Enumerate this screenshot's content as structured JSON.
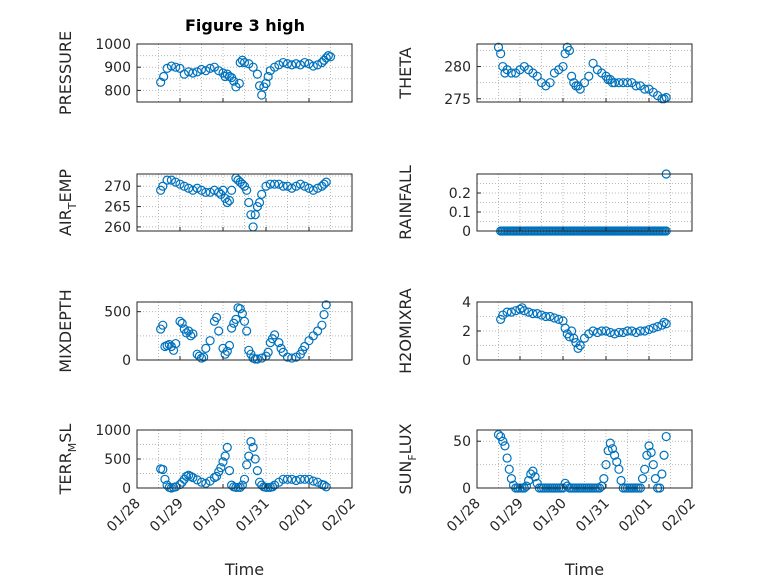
{
  "chart_data": [
    {
      "type": "scatter",
      "title": "Figure 3 high",
      "ylabel": "PRESSURE",
      "xlim": [
        "01/28",
        "02/02"
      ],
      "ylim": [
        750,
        1000
      ],
      "yticks": [
        800,
        900,
        1000
      ],
      "show_xticks": false,
      "color": "#0072bd",
      "x": [
        0.55,
        0.62,
        0.7,
        0.8,
        0.9,
        1.0,
        1.1,
        1.2,
        1.3,
        1.4,
        1.5,
        1.6,
        1.7,
        1.8,
        1.9,
        2.0,
        2.05,
        2.1,
        2.15,
        2.2,
        2.25,
        2.3,
        2.38,
        2.4,
        2.45,
        2.5,
        2.6,
        2.7,
        2.8,
        2.85,
        2.9,
        2.95,
        3.0,
        3.05,
        3.1,
        3.2,
        3.3,
        3.4,
        3.5,
        3.6,
        3.7,
        3.8,
        3.9,
        4.0,
        4.1,
        4.2,
        4.3,
        4.35,
        4.4,
        4.45,
        4.5
      ],
      "values": [
        835,
        860,
        895,
        905,
        900,
        895,
        870,
        880,
        875,
        880,
        890,
        885,
        895,
        900,
        885,
        875,
        860,
        870,
        860,
        855,
        840,
        815,
        830,
        920,
        930,
        920,
        915,
        900,
        870,
        820,
        780,
        815,
        830,
        860,
        885,
        900,
        910,
        920,
        915,
        910,
        915,
        910,
        920,
        915,
        905,
        910,
        920,
        930,
        940,
        950,
        945
      ]
    },
    {
      "type": "scatter",
      "title": "",
      "ylabel": "THETA",
      "xlim": [
        "01/28",
        "02/02"
      ],
      "ylim": [
        274.5,
        283.5
      ],
      "yticks": [
        275,
        280
      ],
      "show_xticks": false,
      "color": "#0072bd",
      "x": [
        0.5,
        0.55,
        0.6,
        0.65,
        0.7,
        0.8,
        0.9,
        1.0,
        1.1,
        1.2,
        1.3,
        1.4,
        1.5,
        1.6,
        1.7,
        1.8,
        1.9,
        2.0,
        2.05,
        2.1,
        2.15,
        2.2,
        2.25,
        2.3,
        2.35,
        2.4,
        2.5,
        2.6,
        2.7,
        2.8,
        2.9,
        3.0,
        3.05,
        3.1,
        3.15,
        3.2,
        3.3,
        3.4,
        3.5,
        3.6,
        3.7,
        3.8,
        3.9,
        4.0,
        4.1,
        4.2,
        4.3,
        4.35,
        4.4
      ],
      "values": [
        283,
        282,
        280,
        279,
        279.5,
        279,
        279,
        279.5,
        280,
        279.5,
        279,
        278.5,
        277.5,
        277,
        277.5,
        279,
        279.5,
        280,
        282,
        283,
        282.5,
        278.5,
        277.5,
        277,
        277,
        276.5,
        277.5,
        278.5,
        280.5,
        279.5,
        279,
        278.5,
        278,
        278,
        277.5,
        277.5,
        277.5,
        277.5,
        277.5,
        277.5,
        277,
        277,
        276.5,
        276.5,
        276,
        275.5,
        275,
        275,
        275.2
      ]
    },
    {
      "type": "scatter",
      "title": "",
      "ylabel": "AIR_TEMP",
      "ylabel_main": "AIR",
      "ylabel_sub": "T",
      "ylabel_rest": "EMP",
      "xlim": [
        "01/28",
        "02/02"
      ],
      "ylim": [
        259,
        273
      ],
      "yticks": [
        260,
        265,
        270
      ],
      "show_xticks": false,
      "color": "#0072bd",
      "x": [
        0.55,
        0.6,
        0.7,
        0.8,
        0.9,
        1.0,
        1.1,
        1.2,
        1.3,
        1.4,
        1.5,
        1.6,
        1.7,
        1.8,
        1.9,
        1.95,
        2.0,
        2.05,
        2.1,
        2.15,
        2.2,
        2.3,
        2.35,
        2.4,
        2.45,
        2.5,
        2.55,
        2.6,
        2.65,
        2.7,
        2.75,
        2.8,
        2.85,
        2.9,
        3.0,
        3.1,
        3.2,
        3.3,
        3.4,
        3.5,
        3.6,
        3.7,
        3.8,
        3.9,
        4.0,
        4.1,
        4.2,
        4.3,
        4.35,
        4.4
      ],
      "values": [
        269,
        270,
        271.5,
        271.5,
        271,
        270.5,
        270,
        269.5,
        269,
        269.5,
        269,
        268.5,
        268.5,
        269,
        268.5,
        268,
        269,
        267,
        266,
        266.5,
        269,
        272,
        271.5,
        271,
        270.5,
        270,
        269,
        266,
        263,
        260,
        263,
        265,
        266,
        268,
        270,
        270.5,
        270.5,
        270.5,
        270,
        270,
        269.5,
        270,
        270.5,
        270,
        269.5,
        269,
        269.5,
        270,
        270.5,
        271
      ]
    },
    {
      "type": "scatter",
      "title": "",
      "ylabel": "RAINFALL",
      "xlim": [
        "01/28",
        "02/02"
      ],
      "ylim": [
        0,
        0.3
      ],
      "yticks": [
        0,
        0.1,
        0.2
      ],
      "ytick_labels": [
        "0",
        "0.1",
        "0.2"
      ],
      "show_xticks": false,
      "color": "#0072bd",
      "x_zero_start": 0.55,
      "x_zero_end": 4.4,
      "x_zero_step": 0.035,
      "x": [
        4.4
      ],
      "values": [
        0.3
      ]
    },
    {
      "type": "scatter",
      "title": "",
      "ylabel": "MIXDEPTH",
      "xlim": [
        "01/28",
        "02/02"
      ],
      "ylim": [
        0,
        600
      ],
      "yticks": [
        0,
        500
      ],
      "show_xticks": false,
      "color": "#0072bd",
      "x": [
        0.55,
        0.6,
        0.65,
        0.7,
        0.75,
        0.8,
        0.85,
        0.9,
        1.0,
        1.05,
        1.1,
        1.15,
        1.2,
        1.25,
        1.3,
        1.4,
        1.45,
        1.5,
        1.55,
        1.6,
        1.7,
        1.8,
        1.85,
        1.9,
        2.0,
        2.05,
        2.1,
        2.15,
        2.2,
        2.25,
        2.3,
        2.35,
        2.4,
        2.45,
        2.5,
        2.55,
        2.6,
        2.65,
        2.7,
        2.75,
        2.8,
        2.9,
        3.0,
        3.05,
        3.1,
        3.15,
        3.2,
        3.3,
        3.35,
        3.4,
        3.5,
        3.6,
        3.7,
        3.8,
        3.85,
        3.9,
        4.0,
        4.1,
        4.2,
        4.3,
        4.35,
        4.4
      ],
      "values": [
        320,
        360,
        140,
        150,
        160,
        140,
        100,
        170,
        400,
        380,
        320,
        280,
        300,
        250,
        270,
        60,
        40,
        20,
        30,
        120,
        200,
        400,
        440,
        300,
        120,
        60,
        90,
        150,
        330,
        380,
        420,
        540,
        530,
        480,
        400,
        300,
        100,
        60,
        20,
        10,
        10,
        20,
        40,
        80,
        180,
        220,
        260,
        180,
        120,
        80,
        30,
        20,
        30,
        60,
        100,
        140,
        200,
        250,
        300,
        360,
        470,
        570
      ]
    },
    {
      "type": "scatter",
      "title": "",
      "ylabel": "H2OMIXRA",
      "xlim": [
        "01/28",
        "02/02"
      ],
      "ylim": [
        0,
        4
      ],
      "yticks": [
        0,
        2,
        4
      ],
      "show_xticks": false,
      "color": "#0072bd",
      "x": [
        0.55,
        0.6,
        0.7,
        0.8,
        0.9,
        1.0,
        1.05,
        1.1,
        1.2,
        1.3,
        1.4,
        1.5,
        1.6,
        1.7,
        1.8,
        1.9,
        2.0,
        2.05,
        2.1,
        2.15,
        2.2,
        2.25,
        2.3,
        2.35,
        2.4,
        2.5,
        2.6,
        2.7,
        2.8,
        2.9,
        3.0,
        3.1,
        3.2,
        3.3,
        3.4,
        3.5,
        3.6,
        3.7,
        3.8,
        3.9,
        4.0,
        4.1,
        4.2,
        4.3,
        4.35,
        4.4
      ],
      "values": [
        2.8,
        3.1,
        3.3,
        3.3,
        3.4,
        3.5,
        3.6,
        3.4,
        3.3,
        3.2,
        3.2,
        3.1,
        3.0,
        3.0,
        2.9,
        2.8,
        2.7,
        2.2,
        1.8,
        1.6,
        2.0,
        1.5,
        1.2,
        0.8,
        1.0,
        1.5,
        1.8,
        2.0,
        1.9,
        2.0,
        2.0,
        1.9,
        1.8,
        1.9,
        1.9,
        2.0,
        2.0,
        1.9,
        2.0,
        2.0,
        2.1,
        2.2,
        2.3,
        2.4,
        2.6,
        2.5
      ]
    },
    {
      "type": "scatter",
      "title": "",
      "ylabel": "TERR_MSL",
      "ylabel_main": "TERR",
      "ylabel_sub": "M",
      "ylabel_rest": "SL",
      "xlabel": "Time",
      "xlim": [
        "01/28",
        "02/02"
      ],
      "ylim": [
        0,
        1000
      ],
      "yticks": [
        0,
        500,
        1000
      ],
      "show_xticks": true,
      "xtick_labels": [
        "01/28",
        "01/29",
        "01/30",
        "01/31",
        "02/01",
        "02/02"
      ],
      "color": "#0072bd",
      "x": [
        0.55,
        0.6,
        0.65,
        0.7,
        0.75,
        0.8,
        0.85,
        0.9,
        1.0,
        1.05,
        1.1,
        1.15,
        1.2,
        1.25,
        1.3,
        1.4,
        1.5,
        1.6,
        1.7,
        1.8,
        1.85,
        1.9,
        1.95,
        2.0,
        2.05,
        2.1,
        2.15,
        2.2,
        2.25,
        2.3,
        2.35,
        2.4,
        2.45,
        2.5,
        2.55,
        2.6,
        2.65,
        2.7,
        2.75,
        2.8,
        2.85,
        2.9,
        2.95,
        3.0,
        3.05,
        3.1,
        3.15,
        3.2,
        3.3,
        3.4,
        3.5,
        3.6,
        3.7,
        3.8,
        3.9,
        4.0,
        4.1,
        4.2,
        4.3,
        4.35,
        4.4
      ],
      "values": [
        330,
        320,
        150,
        50,
        10,
        0,
        10,
        20,
        60,
        100,
        150,
        200,
        220,
        200,
        180,
        140,
        100,
        80,
        120,
        180,
        200,
        280,
        350,
        450,
        550,
        700,
        300,
        50,
        20,
        10,
        10,
        10,
        50,
        150,
        400,
        550,
        800,
        700,
        500,
        300,
        100,
        50,
        20,
        10,
        10,
        10,
        20,
        50,
        100,
        150,
        150,
        150,
        130,
        150,
        150,
        150,
        120,
        100,
        60,
        50,
        20
      ]
    },
    {
      "type": "scatter",
      "title": "",
      "ylabel": "SUN_FLUX",
      "ylabel_main": "SUN",
      "ylabel_sub": "F",
      "ylabel_rest": "LUX",
      "xlabel": "Time",
      "xlim": [
        "01/28",
        "02/02"
      ],
      "ylim": [
        0,
        62
      ],
      "yticks": [
        0,
        50
      ],
      "show_xticks": true,
      "xtick_labels": [
        "01/28",
        "01/29",
        "01/30",
        "01/31",
        "02/01",
        "02/02"
      ],
      "color": "#0072bd",
      "x": [
        0.5,
        0.55,
        0.6,
        0.65,
        0.7,
        0.75,
        0.8,
        0.85,
        0.9,
        0.95,
        1.0,
        1.05,
        1.1,
        1.15,
        1.2,
        1.25,
        1.3,
        1.35,
        1.4,
        1.45,
        1.5,
        1.55,
        1.6,
        1.65,
        1.7,
        1.75,
        1.8,
        1.85,
        1.9,
        1.95,
        2.0,
        2.05,
        2.1,
        2.15,
        2.2,
        2.25,
        2.3,
        2.35,
        2.4,
        2.45,
        2.5,
        2.55,
        2.6,
        2.65,
        2.7,
        2.75,
        2.8,
        2.85,
        2.9,
        2.95,
        3.0,
        3.05,
        3.1,
        3.15,
        3.2,
        3.25,
        3.3,
        3.35,
        3.4,
        3.45,
        3.5,
        3.55,
        3.6,
        3.65,
        3.7,
        3.75,
        3.8,
        3.85,
        3.9,
        3.95,
        4.0,
        4.05,
        4.1,
        4.15,
        4.2,
        4.25,
        4.3,
        4.35,
        4.4
      ],
      "values": [
        57,
        55,
        50,
        45,
        32,
        20,
        10,
        3,
        0,
        0,
        0,
        0,
        0,
        2,
        8,
        15,
        18,
        12,
        5,
        0,
        0,
        0,
        0,
        0,
        0,
        0,
        0,
        0,
        0,
        0,
        0,
        5,
        2,
        0,
        0,
        0,
        0,
        0,
        0,
        0,
        0,
        0,
        0,
        0,
        0,
        0,
        0,
        0,
        2,
        10,
        25,
        40,
        48,
        42,
        35,
        28,
        20,
        8,
        0,
        0,
        0,
        0,
        0,
        0,
        0,
        0,
        0,
        10,
        20,
        35,
        45,
        38,
        25,
        10,
        0,
        0,
        15,
        35,
        55
      ]
    }
  ]
}
